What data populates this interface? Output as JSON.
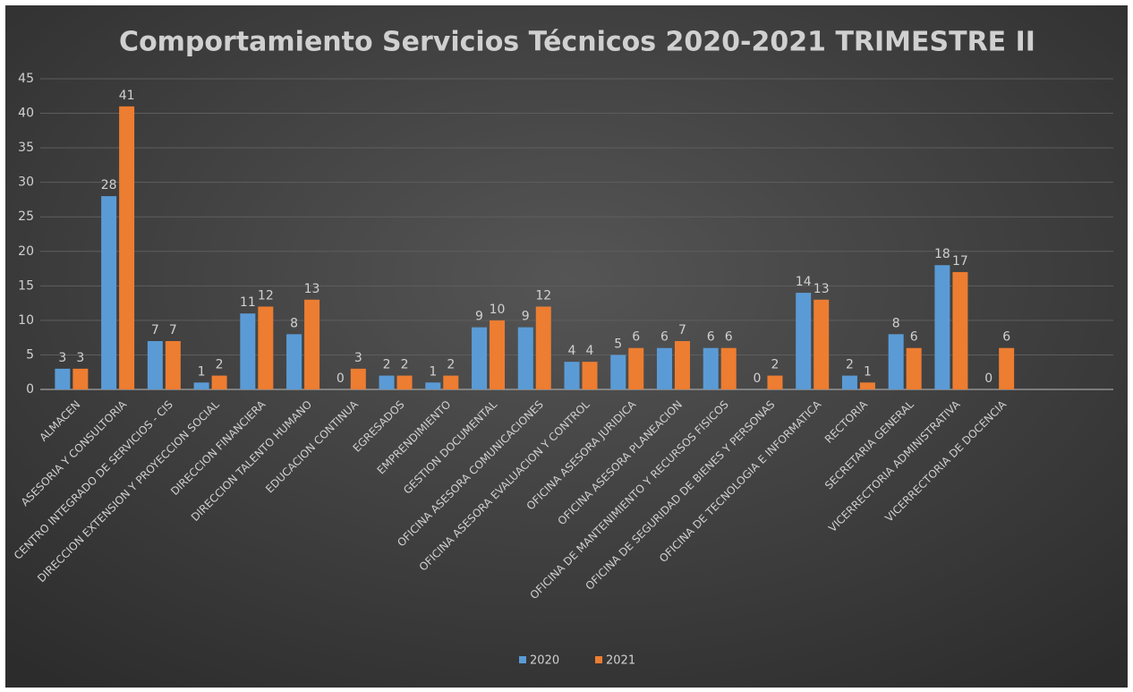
{
  "chart_data": {
    "type": "bar",
    "title": "Comportamiento Servicios Técnicos 2020-2021 TRIMESTRE II",
    "categories": [
      "ALMACEN",
      "ASESORIA Y CONSULTORIA",
      "CENTRO INTEGRADO DE SERVICIOS - CIS",
      "DIRECCION EXTENSION Y PROYECCION SOCIAL",
      "DIRECCION FINANCIERA",
      "DIRECCION TALENTO HUMANO",
      "EDUCACION CONTINUA",
      "EGRESADOS",
      "EMPRENDIMIENTO",
      "GESTION DOCUMENTAL",
      "OFICINA ASESORA COMUNICACIONES",
      "OFICINA ASESORA EVALUACION Y CONTROL",
      "OFICINA ASESORA JURIDICA",
      "OFICINA ASESORA PLANEACION",
      "OFICINA DE MANTENIMIENTO Y RECURSOS FISICOS",
      "OFICINA DE SEGURIDAD DE BIENES Y PERSONAS",
      "OFICINA DE TECNOLOGIA E INFORMATICA",
      "RECTORIA",
      "SECRETARIA GENERAL",
      "VICERRECTORIA ADMINISTRATIVA",
      "VICERRECTORIA DE DOCENCIA",
      null,
      null
    ],
    "series": [
      {
        "name": "2020",
        "color": "#5b9bd5",
        "values": [
          3,
          28,
          7,
          1,
          11,
          8,
          0,
          2,
          1,
          9,
          9,
          4,
          5,
          6,
          6,
          0,
          14,
          2,
          8,
          18,
          0,
          null,
          null
        ]
      },
      {
        "name": "2021",
        "color": "#ed7d31",
        "values": [
          3,
          41,
          7,
          2,
          12,
          13,
          3,
          2,
          2,
          10,
          12,
          4,
          6,
          7,
          6,
          2,
          13,
          1,
          6,
          17,
          6,
          null,
          null
        ]
      }
    ],
    "ylim": [
      0,
      45
    ],
    "yticks": [
      0,
      5,
      10,
      15,
      20,
      25,
      30,
      35,
      40,
      45
    ],
    "grid": true,
    "legend": "bottom"
  }
}
